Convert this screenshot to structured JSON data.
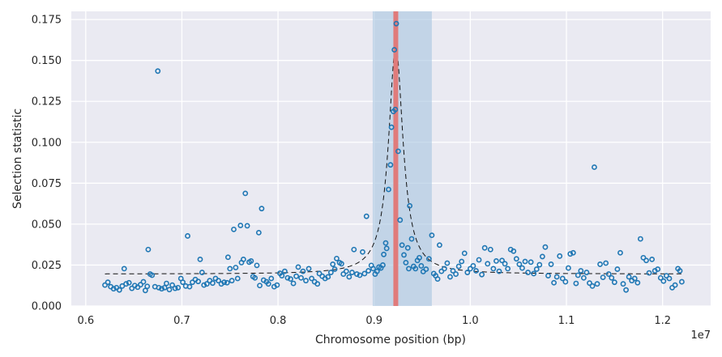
{
  "chart_data": {
    "type": "scatter",
    "xlabel": "Chromosome position (bp)",
    "ylabel": "Selection statistic",
    "x_offset_label": "1e7",
    "xlim": [
      0.585,
      1.25
    ],
    "ylim": [
      0,
      0.18
    ],
    "x_ticks": [
      0.6,
      0.7,
      0.8,
      0.9,
      1.0,
      1.1,
      1.2
    ],
    "x_tick_labels": [
      "0.6",
      "0.7",
      "0.8",
      "0.9",
      "1.0",
      "1.1",
      "1.2"
    ],
    "y_ticks": [
      0,
      0.025,
      0.05,
      0.075,
      0.1,
      0.125,
      0.15,
      0.175
    ],
    "y_tick_labels": [
      "0.000",
      "0.025",
      "0.050",
      "0.075",
      "0.100",
      "0.125",
      "0.150",
      "0.175"
    ],
    "grid": true,
    "shaded_region": {
      "x_start": 0.8985,
      "x_end": 0.96,
      "color": "#a7c4e0"
    },
    "vertical_line": {
      "x": 0.9225,
      "color": "#e07b7b"
    },
    "fit_curve": {
      "baseline": 0.0195,
      "peak_x": 0.9225,
      "peak_y": 0.159,
      "halfwidth": 0.009,
      "color": "#111111",
      "style": "dashed"
    },
    "marker_color": "#1f77b4",
    "points": [
      [
        0.62,
        0.0128
      ],
      [
        0.623,
        0.0145
      ],
      [
        0.626,
        0.0118
      ],
      [
        0.629,
        0.0105
      ],
      [
        0.632,
        0.0112
      ],
      [
        0.635,
        0.0098
      ],
      [
        0.638,
        0.0122
      ],
      [
        0.64,
        0.0228
      ],
      [
        0.642,
        0.0135
      ],
      [
        0.645,
        0.0142
      ],
      [
        0.648,
        0.0108
      ],
      [
        0.651,
        0.0125
      ],
      [
        0.654,
        0.0115
      ],
      [
        0.657,
        0.013
      ],
      [
        0.66,
        0.0148
      ],
      [
        0.662,
        0.0095
      ],
      [
        0.664,
        0.012
      ],
      [
        0.665,
        0.0345
      ],
      [
        0.667,
        0.0195
      ],
      [
        0.669,
        0.0188
      ],
      [
        0.672,
        0.0118
      ],
      [
        0.675,
        0.1435
      ],
      [
        0.676,
        0.0112
      ],
      [
        0.679,
        0.0105
      ],
      [
        0.682,
        0.0112
      ],
      [
        0.684,
        0.0138
      ],
      [
        0.687,
        0.01
      ],
      [
        0.69,
        0.0128
      ],
      [
        0.693,
        0.0108
      ],
      [
        0.696,
        0.0112
      ],
      [
        0.699,
        0.0168
      ],
      [
        0.701,
        0.0145
      ],
      [
        0.704,
        0.0122
      ],
      [
        0.706,
        0.0428
      ],
      [
        0.708,
        0.0118
      ],
      [
        0.711,
        0.0145
      ],
      [
        0.714,
        0.0162
      ],
      [
        0.717,
        0.015
      ],
      [
        0.719,
        0.0285
      ],
      [
        0.721,
        0.0205
      ],
      [
        0.723,
        0.0128
      ],
      [
        0.726,
        0.0135
      ],
      [
        0.729,
        0.0155
      ],
      [
        0.732,
        0.014
      ],
      [
        0.735,
        0.0168
      ],
      [
        0.738,
        0.0155
      ],
      [
        0.741,
        0.0135
      ],
      [
        0.744,
        0.0145
      ],
      [
        0.747,
        0.0142
      ],
      [
        0.748,
        0.0298
      ],
      [
        0.75,
        0.0228
      ],
      [
        0.752,
        0.0155
      ],
      [
        0.754,
        0.0468
      ],
      [
        0.756,
        0.0235
      ],
      [
        0.758,
        0.0168
      ],
      [
        0.761,
        0.0492
      ],
      [
        0.762,
        0.0265
      ],
      [
        0.764,
        0.0285
      ],
      [
        0.766,
        0.0688
      ],
      [
        0.768,
        0.049
      ],
      [
        0.77,
        0.0268
      ],
      [
        0.772,
        0.0275
      ],
      [
        0.774,
        0.018
      ],
      [
        0.776,
        0.0172
      ],
      [
        0.778,
        0.0248
      ],
      [
        0.78,
        0.0448
      ],
      [
        0.781,
        0.0125
      ],
      [
        0.783,
        0.0595
      ],
      [
        0.785,
        0.0158
      ],
      [
        0.788,
        0.0148
      ],
      [
        0.79,
        0.0135
      ],
      [
        0.793,
        0.0168
      ],
      [
        0.796,
        0.0118
      ],
      [
        0.799,
        0.0128
      ],
      [
        0.802,
        0.02
      ],
      [
        0.804,
        0.0185
      ],
      [
        0.807,
        0.0212
      ],
      [
        0.81,
        0.0172
      ],
      [
        0.813,
        0.0165
      ],
      [
        0.816,
        0.0138
      ],
      [
        0.819,
        0.0182
      ],
      [
        0.821,
        0.0238
      ],
      [
        0.824,
        0.0172
      ],
      [
        0.826,
        0.0212
      ],
      [
        0.829,
        0.0155
      ],
      [
        0.832,
        0.0228
      ],
      [
        0.835,
        0.0168
      ],
      [
        0.838,
        0.0148
      ],
      [
        0.841,
        0.0135
      ],
      [
        0.843,
        0.0198
      ],
      [
        0.846,
        0.0182
      ],
      [
        0.849,
        0.0168
      ],
      [
        0.852,
        0.0178
      ],
      [
        0.855,
        0.0205
      ],
      [
        0.857,
        0.0255
      ],
      [
        0.859,
        0.0225
      ],
      [
        0.861,
        0.029
      ],
      [
        0.864,
        0.0265
      ],
      [
        0.866,
        0.0258
      ],
      [
        0.868,
        0.0195
      ],
      [
        0.871,
        0.0212
      ],
      [
        0.874,
        0.0178
      ],
      [
        0.877,
        0.0205
      ],
      [
        0.879,
        0.0345
      ],
      [
        0.882,
        0.0195
      ],
      [
        0.885,
        0.0188
      ],
      [
        0.888,
        0.033
      ],
      [
        0.89,
        0.0198
      ],
      [
        0.892,
        0.0548
      ],
      [
        0.894,
        0.0215
      ],
      [
        0.897,
        0.0248
      ],
      [
        0.899,
        0.0228
      ],
      [
        0.901,
        0.0195
      ],
      [
        0.903,
        0.0212
      ],
      [
        0.905,
        0.0238
      ],
      [
        0.907,
        0.0232
      ],
      [
        0.909,
        0.025
      ],
      [
        0.91,
        0.0315
      ],
      [
        0.912,
        0.0385
      ],
      [
        0.913,
        0.0352
      ],
      [
        0.915,
        0.0712
      ],
      [
        0.917,
        0.0862
      ],
      [
        0.918,
        0.1092
      ],
      [
        0.92,
        0.1188
      ],
      [
        0.921,
        0.1565
      ],
      [
        0.922,
        0.12
      ],
      [
        0.923,
        0.1725
      ],
      [
        0.925,
        0.0945
      ],
      [
        0.927,
        0.0525
      ],
      [
        0.929,
        0.0372
      ],
      [
        0.931,
        0.0312
      ],
      [
        0.933,
        0.0265
      ],
      [
        0.935,
        0.0355
      ],
      [
        0.936,
        0.0228
      ],
      [
        0.937,
        0.0612
      ],
      [
        0.939,
        0.041
      ],
      [
        0.941,
        0.0242
      ],
      [
        0.943,
        0.0228
      ],
      [
        0.945,
        0.0278
      ],
      [
        0.947,
        0.0295
      ],
      [
        0.949,
        0.0245
      ],
      [
        0.951,
        0.021
      ],
      [
        0.954,
        0.0225
      ],
      [
        0.957,
        0.0288
      ],
      [
        0.96,
        0.0432
      ],
      [
        0.962,
        0.0198
      ],
      [
        0.964,
        0.0185
      ],
      [
        0.966,
        0.0165
      ],
      [
        0.968,
        0.0372
      ],
      [
        0.97,
        0.0212
      ],
      [
        0.973,
        0.0228
      ],
      [
        0.976,
        0.0262
      ],
      [
        0.979,
        0.0178
      ],
      [
        0.982,
        0.0215
      ],
      [
        0.985,
        0.0195
      ],
      [
        0.988,
        0.0242
      ],
      [
        0.991,
        0.0272
      ],
      [
        0.994,
        0.0322
      ],
      [
        0.997,
        0.0205
      ],
      [
        1.0,
        0.0228
      ],
      [
        1.003,
        0.0245
      ],
      [
        1.006,
        0.0215
      ],
      [
        1.009,
        0.0282
      ],
      [
        1.012,
        0.0192
      ],
      [
        1.015,
        0.0355
      ],
      [
        1.018,
        0.0258
      ],
      [
        1.021,
        0.0345
      ],
      [
        1.024,
        0.0228
      ],
      [
        1.027,
        0.0275
      ],
      [
        1.03,
        0.0212
      ],
      [
        1.033,
        0.0278
      ],
      [
        1.036,
        0.0258
      ],
      [
        1.039,
        0.0228
      ],
      [
        1.042,
        0.0345
      ],
      [
        1.045,
        0.0335
      ],
      [
        1.048,
        0.0288
      ],
      [
        1.051,
        0.0255
      ],
      [
        1.054,
        0.0232
      ],
      [
        1.057,
        0.0272
      ],
      [
        1.06,
        0.0205
      ],
      [
        1.063,
        0.0268
      ],
      [
        1.066,
        0.0198
      ],
      [
        1.069,
        0.0225
      ],
      [
        1.072,
        0.0252
      ],
      [
        1.075,
        0.0302
      ],
      [
        1.078,
        0.036
      ],
      [
        1.081,
        0.0185
      ],
      [
        1.084,
        0.0255
      ],
      [
        1.087,
        0.0142
      ],
      [
        1.09,
        0.0178
      ],
      [
        1.093,
        0.0305
      ],
      [
        1.096,
        0.0168
      ],
      [
        1.099,
        0.0148
      ],
      [
        1.102,
        0.0232
      ],
      [
        1.104,
        0.0318
      ],
      [
        1.107,
        0.0325
      ],
      [
        1.11,
        0.0138
      ],
      [
        1.112,
        0.0188
      ],
      [
        1.115,
        0.0215
      ],
      [
        1.118,
        0.0172
      ],
      [
        1.121,
        0.0205
      ],
      [
        1.124,
        0.014
      ],
      [
        1.127,
        0.0122
      ],
      [
        1.129,
        0.0848
      ],
      [
        1.132,
        0.0135
      ],
      [
        1.135,
        0.0255
      ],
      [
        1.138,
        0.0175
      ],
      [
        1.141,
        0.0262
      ],
      [
        1.144,
        0.0195
      ],
      [
        1.147,
        0.0172
      ],
      [
        1.15,
        0.0145
      ],
      [
        1.153,
        0.0225
      ],
      [
        1.156,
        0.0325
      ],
      [
        1.159,
        0.0135
      ],
      [
        1.162,
        0.0098
      ],
      [
        1.165,
        0.0178
      ],
      [
        1.168,
        0.0155
      ],
      [
        1.171,
        0.0168
      ],
      [
        1.174,
        0.0142
      ],
      [
        1.177,
        0.041
      ],
      [
        1.18,
        0.0295
      ],
      [
        1.183,
        0.0278
      ],
      [
        1.186,
        0.0202
      ],
      [
        1.189,
        0.0285
      ],
      [
        1.192,
        0.0215
      ],
      [
        1.195,
        0.0225
      ],
      [
        1.198,
        0.0172
      ],
      [
        1.201,
        0.0152
      ],
      [
        1.204,
        0.0185
      ],
      [
        1.207,
        0.0168
      ],
      [
        1.21,
        0.0112
      ],
      [
        1.213,
        0.0128
      ],
      [
        1.216,
        0.0228
      ],
      [
        1.218,
        0.0215
      ],
      [
        1.22,
        0.0148
      ]
    ]
  }
}
